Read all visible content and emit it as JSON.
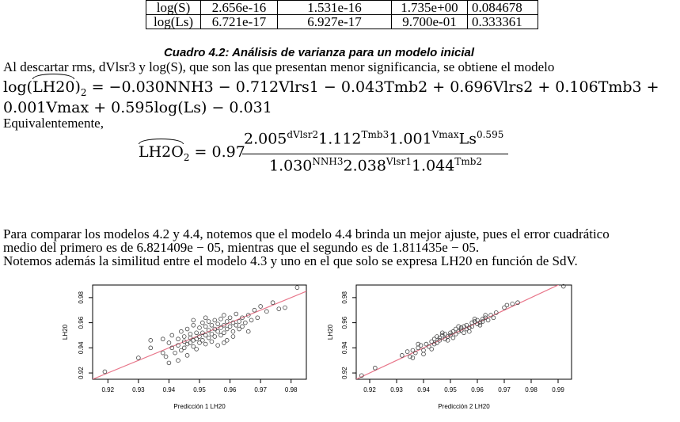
{
  "table": {
    "rows": [
      [
        "log(S)",
        "2.656e-16",
        "1.531e-16",
        "1.735e+00",
        "0.084678"
      ],
      [
        "log(Ls)",
        "6.721e-17",
        "6.927e-17",
        "9.700e-01",
        "0.333361"
      ]
    ]
  },
  "caption": "Cuadro 4.2: Análisis de varianza para un modelo inicial",
  "para1": "Al descartar rms, dVlsr3 y log(S), que son las que presentan menor significancia, se obtiene el modelo",
  "model_line1_rhs": " = −0.030NNH3 − 0.712Vlrs1 − 0.043Tmb2 + 0.696Vlrs2 + 0.106Tmb3 +",
  "model_lhs_log": "log(",
  "model_lhs_var": "LH20",
  "model_lhs_close": ")",
  "model_lhs_sub": "2",
  "model_line2": "0.001Vmax + 0.595log(Ls) − 0.031",
  "equiv": "Equivalentemente,",
  "eq2": {
    "lhs_var": "LH2O",
    "lhs_sub": "2",
    "eq_coef": " = 0.97",
    "num_a": "2.005",
    "num_a_exp": "dVlsr2",
    "num_b": "1.112",
    "num_b_exp": "Tmb3",
    "num_c": "1.001",
    "num_c_exp": "Vmax",
    "num_d": "Ls",
    "num_d_exp": "0.595",
    "den_a": "1.030",
    "den_a_exp": "NNH3",
    "den_b": "2.038",
    "den_b_exp": "Vlsr1",
    "den_c": "1.044",
    "den_c_exp": "Tmb2"
  },
  "para2": [
    "Para comparar los modelos 4.2 y 4.4, notemos que el modelo 4.4 brinda un mejor ajuste, pues el error cuadrático",
    "medio del primero es de 6.821409e − 05, mientras que el segundo es de 1.811435e − 05.",
    "Notemos además la similitud entre el modelo 4.3 y uno en el que solo se expresa LH20 en función de SdV."
  ],
  "chart_data": [
    {
      "type": "scatter",
      "xlabel": "Predicción 1 LH20",
      "ylabel": "LH20",
      "xlim": [
        0.915,
        0.985
      ],
      "ylim": [
        0.915,
        0.99
      ],
      "x_ticks": [
        "0.92",
        "0.93",
        "0.94",
        "0.95",
        "0.96",
        "0.97",
        "0.98"
      ],
      "y_ticks": [
        "0.92",
        "0.94",
        "0.96",
        "0.98"
      ],
      "reference_line": {
        "color": "#e8768a",
        "slope": 1,
        "intercept": 0
      },
      "point_color": "#444444",
      "points": [
        [
          0.919,
          0.921
        ],
        [
          0.93,
          0.932
        ],
        [
          0.934,
          0.94
        ],
        [
          0.934,
          0.946
        ],
        [
          0.938,
          0.936
        ],
        [
          0.939,
          0.933
        ],
        [
          0.94,
          0.928
        ],
        [
          0.94,
          0.944
        ],
        [
          0.941,
          0.95
        ],
        [
          0.941,
          0.94
        ],
        [
          0.942,
          0.936
        ],
        [
          0.943,
          0.947
        ],
        [
          0.943,
          0.942
        ],
        [
          0.944,
          0.953
        ],
        [
          0.944,
          0.938
        ],
        [
          0.945,
          0.945
        ],
        [
          0.945,
          0.949
        ],
        [
          0.945,
          0.94
        ],
        [
          0.946,
          0.955
        ],
        [
          0.946,
          0.943
        ],
        [
          0.946,
          0.934
        ],
        [
          0.947,
          0.948
        ],
        [
          0.947,
          0.951
        ],
        [
          0.947,
          0.944
        ],
        [
          0.948,
          0.958
        ],
        [
          0.948,
          0.946
        ],
        [
          0.948,
          0.941
        ],
        [
          0.949,
          0.952
        ],
        [
          0.949,
          0.947
        ],
        [
          0.949,
          0.939
        ],
        [
          0.95,
          0.956
        ],
        [
          0.95,
          0.949
        ],
        [
          0.95,
          0.944
        ],
        [
          0.951,
          0.96
        ],
        [
          0.951,
          0.952
        ],
        [
          0.951,
          0.946
        ],
        [
          0.952,
          0.957
        ],
        [
          0.952,
          0.95
        ],
        [
          0.952,
          0.943
        ],
        [
          0.953,
          0.961
        ],
        [
          0.953,
          0.954
        ],
        [
          0.953,
          0.948
        ],
        [
          0.954,
          0.958
        ],
        [
          0.954,
          0.951
        ],
        [
          0.954,
          0.945
        ],
        [
          0.955,
          0.962
        ],
        [
          0.955,
          0.955
        ],
        [
          0.955,
          0.949
        ],
        [
          0.956,
          0.959
        ],
        [
          0.956,
          0.953
        ],
        [
          0.956,
          0.942
        ],
        [
          0.957,
          0.963
        ],
        [
          0.957,
          0.956
        ],
        [
          0.957,
          0.95
        ],
        [
          0.958,
          0.966
        ],
        [
          0.958,
          0.958
        ],
        [
          0.958,
          0.952
        ],
        [
          0.959,
          0.961
        ],
        [
          0.959,
          0.955
        ],
        [
          0.959,
          0.946
        ],
        [
          0.96,
          0.964
        ],
        [
          0.96,
          0.957
        ],
        [
          0.961,
          0.96
        ],
        [
          0.961,
          0.953
        ],
        [
          0.962,
          0.967
        ],
        [
          0.962,
          0.958
        ],
        [
          0.963,
          0.961
        ],
        [
          0.963,
          0.955
        ],
        [
          0.964,
          0.964
        ],
        [
          0.964,
          0.957
        ],
        [
          0.965,
          0.96
        ],
        [
          0.966,
          0.966
        ],
        [
          0.966,
          0.953
        ],
        [
          0.967,
          0.962
        ],
        [
          0.968,
          0.97
        ],
        [
          0.969,
          0.964
        ],
        [
          0.97,
          0.973
        ],
        [
          0.972,
          0.969
        ],
        [
          0.974,
          0.976
        ],
        [
          0.976,
          0.971
        ],
        [
          0.978,
          0.972
        ],
        [
          0.982,
          0.988
        ],
        [
          0.943,
          0.93
        ],
        [
          0.948,
          0.962
        ],
        [
          0.952,
          0.964
        ],
        [
          0.958,
          0.944
        ],
        [
          0.938,
          0.947
        ],
        [
          0.961,
          0.949
        ]
      ]
    },
    {
      "type": "scatter",
      "xlabel": "Predicción 2 LH20",
      "ylabel": "LH20",
      "xlim": [
        0.915,
        0.995
      ],
      "ylim": [
        0.915,
        0.99
      ],
      "x_ticks": [
        "0.92",
        "0.93",
        "0.94",
        "0.95",
        "0.96",
        "0.97",
        "0.98",
        "0.99"
      ],
      "y_ticks": [
        "0.92",
        "0.94",
        "0.96",
        "0.98"
      ],
      "reference_line": {
        "color": "#e8768a",
        "slope": 1,
        "intercept": 0
      },
      "point_color": "#444444",
      "points": [
        [
          0.917,
          0.918
        ],
        [
          0.922,
          0.924
        ],
        [
          0.932,
          0.934
        ],
        [
          0.934,
          0.937
        ],
        [
          0.935,
          0.933
        ],
        [
          0.936,
          0.938
        ],
        [
          0.937,
          0.936
        ],
        [
          0.938,
          0.94
        ],
        [
          0.939,
          0.942
        ],
        [
          0.94,
          0.938
        ],
        [
          0.941,
          0.943
        ],
        [
          0.942,
          0.941
        ],
        [
          0.943,
          0.945
        ],
        [
          0.944,
          0.943
        ],
        [
          0.944,
          0.947
        ],
        [
          0.945,
          0.944
        ],
        [
          0.946,
          0.948
        ],
        [
          0.946,
          0.946
        ],
        [
          0.947,
          0.95
        ],
        [
          0.948,
          0.947
        ],
        [
          0.948,
          0.951
        ],
        [
          0.949,
          0.949
        ],
        [
          0.95,
          0.952
        ],
        [
          0.95,
          0.95
        ],
        [
          0.951,
          0.953
        ],
        [
          0.952,
          0.951
        ],
        [
          0.952,
          0.955
        ],
        [
          0.953,
          0.953
        ],
        [
          0.954,
          0.956
        ],
        [
          0.954,
          0.954
        ],
        [
          0.955,
          0.957
        ],
        [
          0.956,
          0.955
        ],
        [
          0.956,
          0.958
        ],
        [
          0.957,
          0.956
        ],
        [
          0.958,
          0.96
        ],
        [
          0.958,
          0.957
        ],
        [
          0.959,
          0.961
        ],
        [
          0.96,
          0.959
        ],
        [
          0.96,
          0.962
        ],
        [
          0.961,
          0.96
        ],
        [
          0.962,
          0.963
        ],
        [
          0.962,
          0.961
        ],
        [
          0.963,
          0.964
        ],
        [
          0.964,
          0.962
        ],
        [
          0.965,
          0.966
        ],
        [
          0.966,
          0.964
        ],
        [
          0.967,
          0.968
        ],
        [
          0.97,
          0.972
        ],
        [
          0.971,
          0.974
        ],
        [
          0.973,
          0.975
        ],
        [
          0.975,
          0.976
        ],
        [
          0.992,
          0.989
        ],
        [
          0.936,
          0.932
        ],
        [
          0.94,
          0.935
        ],
        [
          0.945,
          0.949
        ],
        [
          0.951,
          0.948
        ],
        [
          0.957,
          0.953
        ],
        [
          0.963,
          0.966
        ],
        [
          0.947,
          0.952
        ],
        [
          0.953,
          0.957
        ],
        [
          0.943,
          0.939
        ],
        [
          0.959,
          0.963
        ],
        [
          0.949,
          0.946
        ],
        [
          0.955,
          0.952
        ],
        [
          0.961,
          0.958
        ],
        [
          0.938,
          0.943
        ]
      ]
    }
  ]
}
